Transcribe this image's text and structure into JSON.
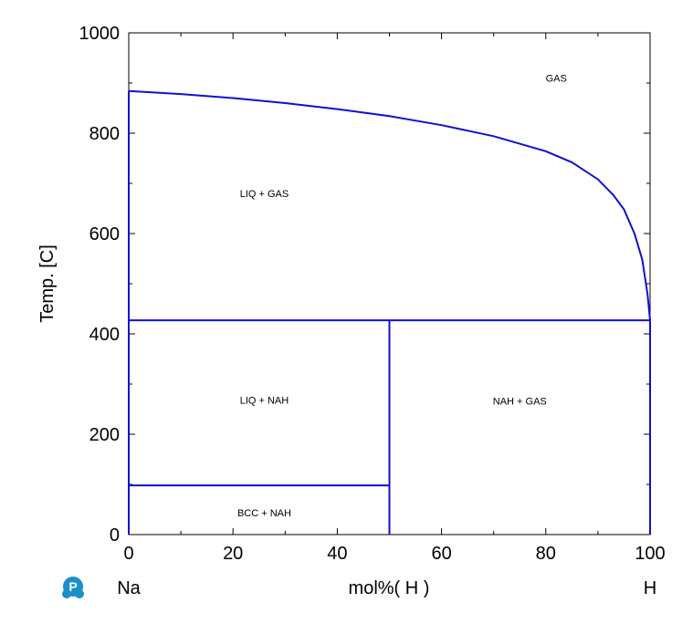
{
  "chart_data": {
    "type": "line",
    "title": "",
    "xlabel": "mol%(  H  )",
    "ylabel": "Temp.  [C]",
    "x_left_label": "Na",
    "x_right_label": "H",
    "xlim": [
      0,
      100
    ],
    "ylim": [
      0,
      1000
    ],
    "xticks": [
      0,
      20,
      40,
      60,
      80,
      100
    ],
    "yticks": [
      0,
      200,
      400,
      600,
      800,
      1000
    ],
    "line_color": "#1010d0",
    "grid": false,
    "series": [
      {
        "values_xy": [
          [
            0,
            884
          ],
          [
            10,
            878
          ],
          [
            20,
            870
          ],
          [
            30,
            860
          ],
          [
            40,
            848
          ],
          [
            50,
            834
          ],
          [
            60,
            816
          ],
          [
            70,
            794
          ],
          [
            80,
            764
          ],
          [
            85,
            742
          ],
          [
            90,
            708
          ],
          [
            93,
            676
          ],
          [
            95,
            648
          ],
          [
            97,
            600
          ],
          [
            98.5,
            548
          ],
          [
            99.5,
            480
          ],
          [
            100,
            427
          ]
        ]
      },
      {
        "values_xy": [
          [
            0,
            427
          ],
          [
            100,
            427
          ]
        ]
      },
      {
        "values_xy": [
          [
            0,
            98
          ],
          [
            50,
            98
          ]
        ]
      },
      {
        "values_xy": [
          [
            50,
            0
          ],
          [
            50,
            427
          ]
        ]
      },
      {
        "values_xy": [
          [
            0,
            0
          ],
          [
            0,
            884
          ]
        ]
      },
      {
        "values_xy": [
          [
            100,
            0
          ],
          [
            100,
            427
          ]
        ]
      }
    ],
    "annotations": [
      {
        "text": "GAS",
        "x": 82,
        "y": 910
      },
      {
        "text": "LIQ + GAS",
        "x": 26,
        "y": 680
      },
      {
        "text": "LIQ + NAH",
        "x": 26,
        "y": 268
      },
      {
        "text": "NAH + GAS",
        "x": 75,
        "y": 266
      },
      {
        "text": "BCC + NAH",
        "x": 26,
        "y": 44
      }
    ]
  },
  "logo": {
    "icon": "p-logo-icon",
    "color": "#1a8fc8"
  }
}
